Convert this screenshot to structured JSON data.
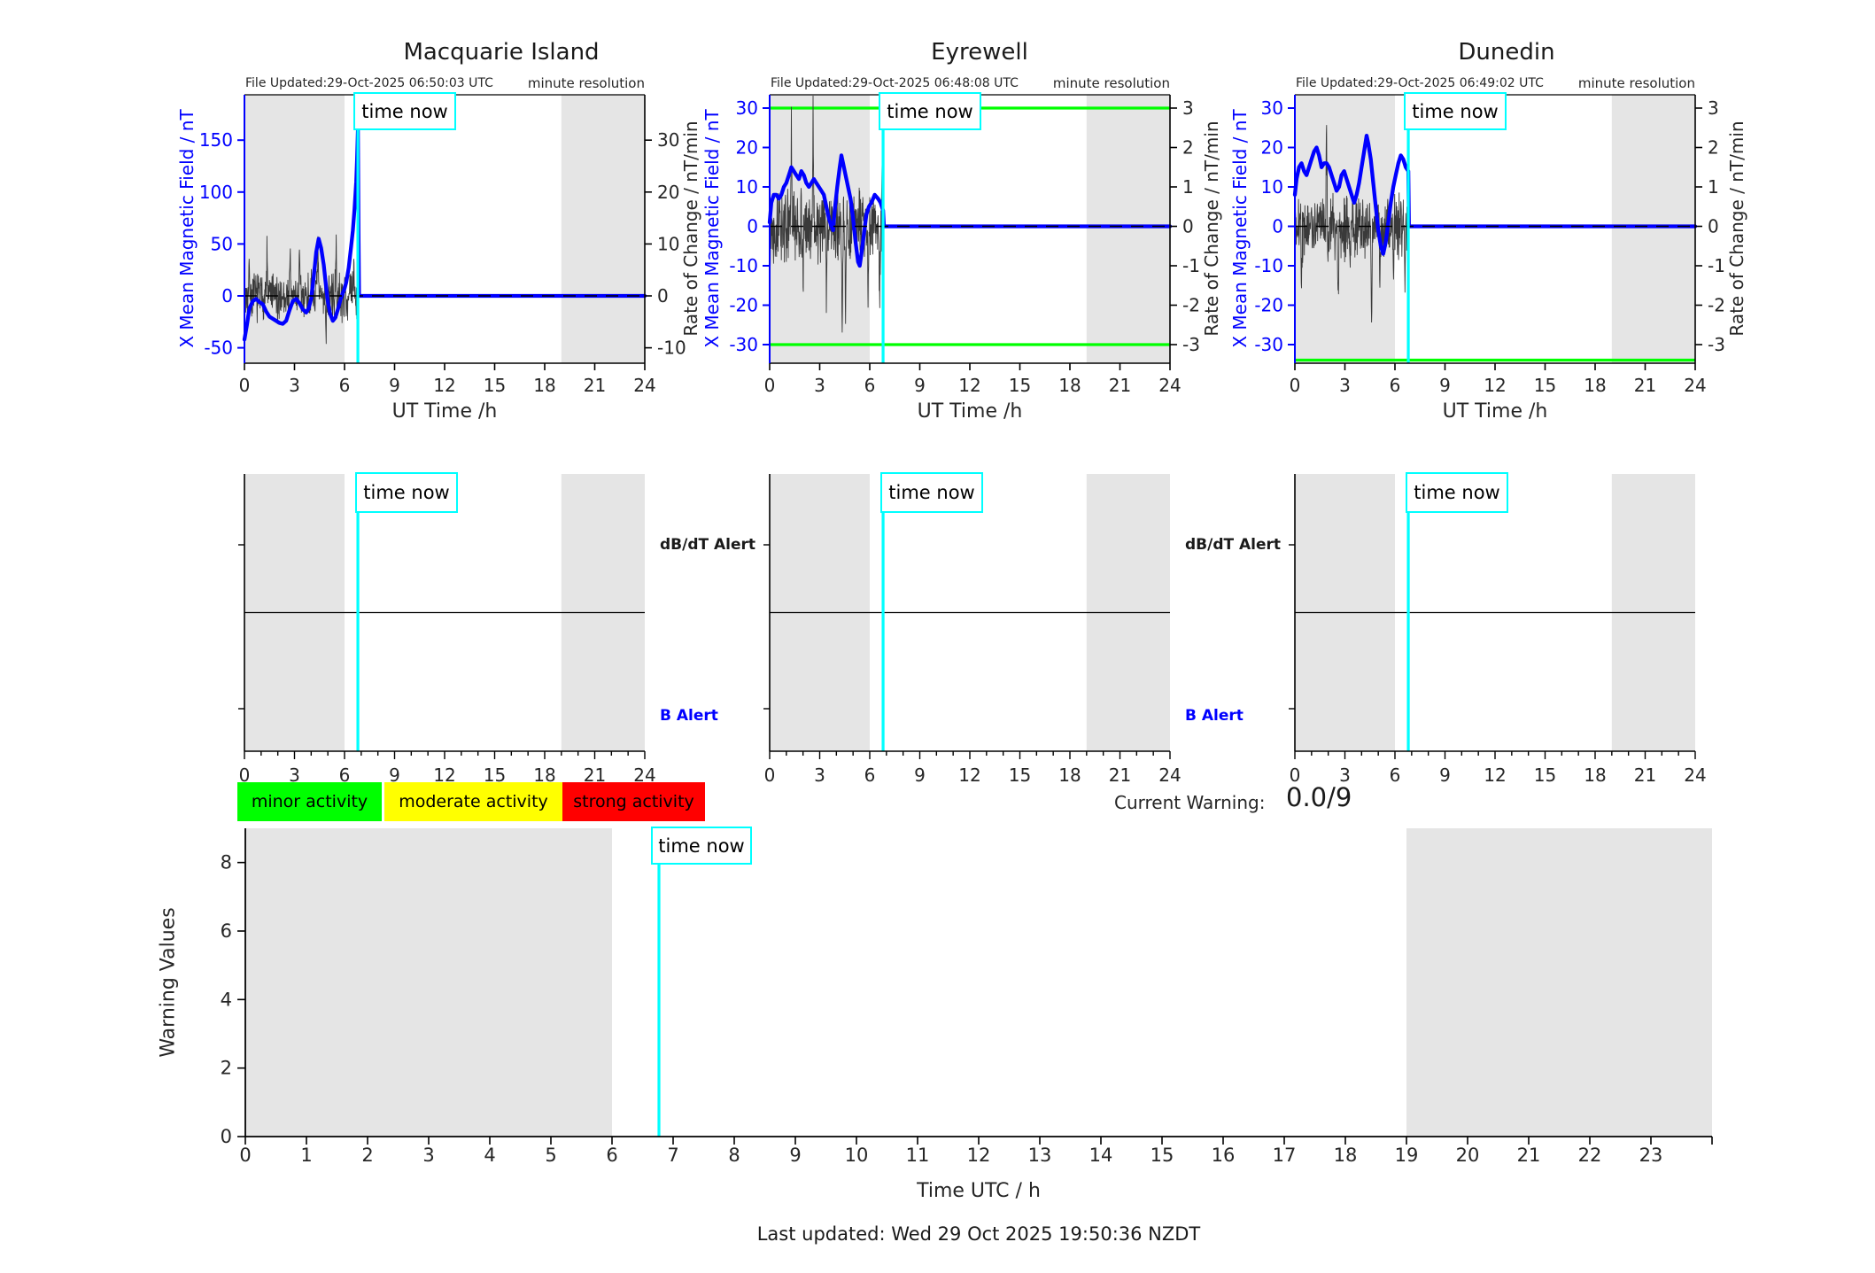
{
  "figure": {
    "time_now_label": "time now",
    "last_updated": "Last updated: Wed 29 Oct 2025 19:50:36 NZDT",
    "current_warning_label": "Current Warning:",
    "current_warning_value": "0.0/9",
    "legend": {
      "minor": {
        "label": "minor activity",
        "color": "#00ff00"
      },
      "moderate": {
        "label": "moderate activity",
        "color": "#ffff00"
      },
      "strong": {
        "label": "strong activity",
        "color": "#ff0000"
      }
    },
    "colors": {
      "mean_field_line": "#0000ff",
      "rate_noise_line": "#3a3a3a",
      "time_now_line": "#00ffff",
      "threshold_line": "#00ff00",
      "night_shading": "#e5e5e5",
      "axis_text": "#262626"
    }
  },
  "stations": [
    {
      "title": "Macquarie Island",
      "file_updated": "File Updated:29-Oct-2025 06:50:03 UTC",
      "resolution_note": "minute resolution",
      "x_label": "UT Time /h",
      "left_axis_label": "X Mean Magnetic Field / nT",
      "right_axis_label": "Rate of Change / nT/min"
    },
    {
      "title": "Eyrewell",
      "file_updated": "File Updated:29-Oct-2025 06:48:08 UTC",
      "resolution_note": "minute resolution",
      "x_label": "UT Time /h",
      "left_axis_label": "X Mean Magnetic Field / nT",
      "right_axis_label": "Rate of Change / nT/min"
    },
    {
      "title": "Dunedin",
      "file_updated": "File Updated:29-Oct-2025 06:49:02 UTC",
      "resolution_note": "minute resolution",
      "x_label": "UT Time /h",
      "left_axis_label": "X Mean Magnetic Field / nT",
      "right_axis_label": "Rate of Change / nT/min"
    }
  ],
  "alert_panels": {
    "db_dt_label": "dB/dT Alert",
    "b_label": "B Alert"
  },
  "warning_plot": {
    "y_label": "Warning Values",
    "x_label": "Time UTC / h"
  },
  "chart_data": [
    {
      "id": "macquarie-island-magnetogram",
      "type": "line",
      "title": "Macquarie Island",
      "x_label": "UT Time /h",
      "x_range": [
        0,
        24
      ],
      "x_ticks": [
        0,
        3,
        6,
        9,
        12,
        15,
        18,
        21,
        24
      ],
      "left_axis": {
        "label": "X Mean Magnetic Field / nT",
        "ticks": [
          150,
          100,
          50,
          0,
          -50
        ],
        "range": [
          -65,
          194
        ]
      },
      "right_axis": {
        "label": "Rate of Change / nT/min",
        "ticks": [
          30,
          20,
          10,
          0,
          -10
        ]
      },
      "time_now_hour": 6.8,
      "shaded_hours": [
        [
          0,
          6
        ],
        [
          19,
          24
        ]
      ],
      "thresholds_nT_per_min": [],
      "mean_field_nT": [
        [
          0,
          -42
        ],
        [
          0.15,
          -28
        ],
        [
          0.3,
          -12
        ],
        [
          0.5,
          -5
        ],
        [
          0.7,
          -3
        ],
        [
          0.9,
          -6
        ],
        [
          1.1,
          -8
        ],
        [
          1.3,
          -15
        ],
        [
          1.5,
          -20
        ],
        [
          1.8,
          -23
        ],
        [
          2.1,
          -26
        ],
        [
          2.3,
          -27
        ],
        [
          2.5,
          -24
        ],
        [
          2.7,
          -14
        ],
        [
          2.9,
          -5
        ],
        [
          3.1,
          -3
        ],
        [
          3.3,
          -7
        ],
        [
          3.5,
          -13
        ],
        [
          3.7,
          -16
        ],
        [
          3.85,
          -12
        ],
        [
          4.0,
          -3
        ],
        [
          4.15,
          18
        ],
        [
          4.3,
          42
        ],
        [
          4.45,
          55
        ],
        [
          4.6,
          46
        ],
        [
          4.75,
          30
        ],
        [
          4.9,
          8
        ],
        [
          5.0,
          -6
        ],
        [
          5.15,
          -18
        ],
        [
          5.3,
          -24
        ],
        [
          5.45,
          -21
        ],
        [
          5.6,
          -13
        ],
        [
          5.75,
          -4
        ],
        [
          5.9,
          3
        ],
        [
          6.0,
          7
        ],
        [
          6.1,
          13
        ],
        [
          6.25,
          27
        ],
        [
          6.4,
          48
        ],
        [
          6.5,
          63
        ],
        [
          6.6,
          84
        ],
        [
          6.7,
          110
        ],
        [
          6.75,
          130
        ],
        [
          6.8,
          160
        ],
        [
          6.84,
          60
        ],
        [
          6.87,
          0
        ],
        [
          24,
          0
        ]
      ],
      "rate_of_change": {
        "resolution": "minute",
        "until_hour": 6.8,
        "typical_amplitude_nT_per_min": 3.2,
        "seed": 7,
        "spikes": [
          [
            0.3,
            6
          ],
          [
            1.35,
            8
          ],
          [
            2.0,
            -6
          ],
          [
            2.75,
            7
          ],
          [
            3.3,
            7
          ],
          [
            4.4,
            9
          ],
          [
            4.9,
            -7
          ],
          [
            5.5,
            8
          ],
          [
            6.55,
            7
          ],
          [
            6.78,
            -9
          ]
        ]
      }
    },
    {
      "id": "eyrewell-magnetogram",
      "type": "line",
      "title": "Eyrewell",
      "x_label": "UT Time /h",
      "x_range": [
        0,
        24
      ],
      "x_ticks": [
        0,
        3,
        6,
        9,
        12,
        15,
        18,
        21,
        24
      ],
      "left_axis": {
        "label": "X Mean Magnetic Field / nT",
        "ticks": [
          30,
          20,
          10,
          0,
          -10,
          -20,
          -30
        ],
        "range": [
          -34.7,
          33.4
        ]
      },
      "right_axis": {
        "label": "Rate of Change / nT/min",
        "ticks": [
          3,
          2,
          1,
          0,
          -1,
          -2,
          -3
        ]
      },
      "time_now_hour": 6.8,
      "shaded_hours": [
        [
          0,
          6
        ],
        [
          19,
          24
        ]
      ],
      "thresholds_nT_per_min": [
        3,
        -3
      ],
      "mean_field_nT": [
        [
          0,
          1
        ],
        [
          0.1,
          6
        ],
        [
          0.25,
          8
        ],
        [
          0.4,
          8
        ],
        [
          0.55,
          7
        ],
        [
          0.7,
          8
        ],
        [
          0.85,
          10
        ],
        [
          1.0,
          11
        ],
        [
          1.15,
          13
        ],
        [
          1.3,
          15
        ],
        [
          1.45,
          14
        ],
        [
          1.6,
          13
        ],
        [
          1.75,
          12
        ],
        [
          1.9,
          14
        ],
        [
          2.05,
          13
        ],
        [
          2.2,
          11
        ],
        [
          2.35,
          10
        ],
        [
          2.5,
          11
        ],
        [
          2.65,
          12
        ],
        [
          2.8,
          11
        ],
        [
          2.95,
          10
        ],
        [
          3.1,
          9
        ],
        [
          3.25,
          8
        ],
        [
          3.4,
          5
        ],
        [
          3.55,
          2
        ],
        [
          3.7,
          0
        ],
        [
          3.8,
          -1
        ],
        [
          3.9,
          4
        ],
        [
          4.05,
          10
        ],
        [
          4.2,
          15
        ],
        [
          4.3,
          18
        ],
        [
          4.4,
          16
        ],
        [
          4.55,
          13
        ],
        [
          4.7,
          10
        ],
        [
          4.85,
          7
        ],
        [
          5.0,
          2
        ],
        [
          5.15,
          -4
        ],
        [
          5.3,
          -9
        ],
        [
          5.4,
          -10
        ],
        [
          5.5,
          -7
        ],
        [
          5.65,
          -2
        ],
        [
          5.8,
          3
        ],
        [
          5.95,
          5
        ],
        [
          6.1,
          6
        ],
        [
          6.3,
          8
        ],
        [
          6.5,
          7
        ],
        [
          6.65,
          6
        ],
        [
          6.8,
          4
        ],
        [
          6.85,
          0
        ],
        [
          24,
          0
        ]
      ],
      "rate_of_change": {
        "resolution": "minute",
        "until_hour": 6.8,
        "typical_amplitude_nT_per_min": 0.62,
        "seed": 13,
        "spikes": [
          [
            1.3,
            2.3
          ],
          [
            2.0,
            -1.6
          ],
          [
            2.6,
            2.6
          ],
          [
            3.4,
            -1.8
          ],
          [
            4.35,
            -3.1
          ],
          [
            4.55,
            -2.2
          ],
          [
            5.9,
            -1.5
          ],
          [
            6.6,
            -2.3
          ],
          [
            6.75,
            1.8
          ]
        ]
      }
    },
    {
      "id": "dunedin-magnetogram",
      "type": "line",
      "title": "Dunedin",
      "x_label": "UT Time /h",
      "x_range": [
        0,
        24
      ],
      "x_ticks": [
        0,
        3,
        6,
        9,
        12,
        15,
        18,
        21,
        24
      ],
      "left_axis": {
        "label": "X Mean Magnetic Field / nT",
        "ticks": [
          30,
          20,
          10,
          0,
          -10,
          -20,
          -30
        ],
        "range": [
          -34.7,
          33.4
        ]
      },
      "right_axis": {
        "label": "Rate of Change / nT/min",
        "ticks": [
          3,
          2,
          1,
          0,
          -1,
          -2,
          -3
        ]
      },
      "time_now_hour": 6.8,
      "shaded_hours": [
        [
          0,
          6
        ],
        [
          19,
          24
        ]
      ],
      "thresholds_nT_per_min": [
        -3.5
      ],
      "mean_field_nT": [
        [
          0,
          8
        ],
        [
          0.1,
          12
        ],
        [
          0.25,
          15
        ],
        [
          0.4,
          16
        ],
        [
          0.55,
          14
        ],
        [
          0.7,
          13
        ],
        [
          0.85,
          15
        ],
        [
          1.0,
          17
        ],
        [
          1.15,
          19
        ],
        [
          1.3,
          20
        ],
        [
          1.45,
          18
        ],
        [
          1.6,
          15
        ],
        [
          1.75,
          16
        ],
        [
          1.9,
          16
        ],
        [
          2.05,
          15
        ],
        [
          2.2,
          13
        ],
        [
          2.35,
          11
        ],
        [
          2.5,
          9
        ],
        [
          2.65,
          10
        ],
        [
          2.8,
          13
        ],
        [
          2.95,
          14
        ],
        [
          3.1,
          12
        ],
        [
          3.25,
          10
        ],
        [
          3.4,
          8
        ],
        [
          3.55,
          6
        ],
        [
          3.7,
          8
        ],
        [
          3.85,
          11
        ],
        [
          4.0,
          15
        ],
        [
          4.15,
          19
        ],
        [
          4.3,
          23
        ],
        [
          4.4,
          21
        ],
        [
          4.55,
          17
        ],
        [
          4.7,
          11
        ],
        [
          4.85,
          5
        ],
        [
          5.0,
          -1
        ],
        [
          5.15,
          -5
        ],
        [
          5.3,
          -7
        ],
        [
          5.45,
          -4
        ],
        [
          5.6,
          1
        ],
        [
          5.75,
          6
        ],
        [
          5.9,
          10
        ],
        [
          6.05,
          13
        ],
        [
          6.2,
          16
        ],
        [
          6.35,
          18
        ],
        [
          6.5,
          17
        ],
        [
          6.65,
          15
        ],
        [
          6.8,
          14
        ],
        [
          6.84,
          0
        ],
        [
          24,
          0
        ]
      ],
      "rate_of_change": {
        "resolution": "minute",
        "until_hour": 6.8,
        "typical_amplitude_nT_per_min": 0.58,
        "seed": 21,
        "spikes": [
          [
            0.4,
            -1.4
          ],
          [
            1.9,
            2.7
          ],
          [
            2.6,
            -1.7
          ],
          [
            3.3,
            -1.2
          ],
          [
            4.6,
            -2.9
          ],
          [
            5.1,
            -1.6
          ],
          [
            5.9,
            -1.3
          ],
          [
            6.6,
            -1.9
          ]
        ]
      }
    },
    {
      "id": "alert-timeline-macquarie-island",
      "type": "timeline",
      "rows": [
        "dB/dT Alert",
        "B Alert"
      ],
      "events": [],
      "x_range": [
        0,
        24
      ],
      "x_ticks": [
        0,
        3,
        6,
        9,
        12,
        15,
        18,
        21,
        24
      ],
      "time_now_hour": 6.8,
      "shaded_hours": [
        [
          0,
          6
        ],
        [
          19,
          24
        ]
      ]
    },
    {
      "id": "alert-timeline-eyrewell",
      "type": "timeline",
      "rows": [
        "dB/dT Alert",
        "B Alert"
      ],
      "events": [],
      "x_range": [
        0,
        24
      ],
      "x_ticks": [
        0,
        3,
        6,
        9,
        12,
        15,
        18,
        21,
        24
      ],
      "time_now_hour": 6.8,
      "shaded_hours": [
        [
          0,
          6
        ],
        [
          19,
          24
        ]
      ]
    },
    {
      "id": "alert-timeline-dunedin",
      "type": "timeline",
      "rows": [
        "dB/dT Alert",
        "B Alert"
      ],
      "events": [],
      "x_range": [
        0,
        24
      ],
      "x_ticks": [
        0,
        3,
        6,
        9,
        12,
        15,
        18,
        21,
        24
      ],
      "time_now_hour": 6.8,
      "shaded_hours": [
        [
          0,
          6
        ],
        [
          19,
          24
        ]
      ]
    },
    {
      "id": "warning-values",
      "type": "line",
      "y_label": "Warning Values",
      "x_label": "Time UTC / h",
      "y_ticks": [
        0,
        2,
        4,
        6,
        8
      ],
      "y_range": [
        0,
        9
      ],
      "x_ticks": [
        0,
        1,
        2,
        3,
        4,
        5,
        6,
        7,
        8,
        9,
        10,
        11,
        12,
        13,
        14,
        15,
        16,
        17,
        18,
        19,
        20,
        21,
        22,
        23
      ],
      "x_range": [
        0,
        24
      ],
      "time_now_hour": 6.8,
      "shaded_hours": [
        [
          0,
          6
        ],
        [
          19,
          24
        ]
      ],
      "series": [],
      "current_warning": "0.0/9"
    }
  ]
}
